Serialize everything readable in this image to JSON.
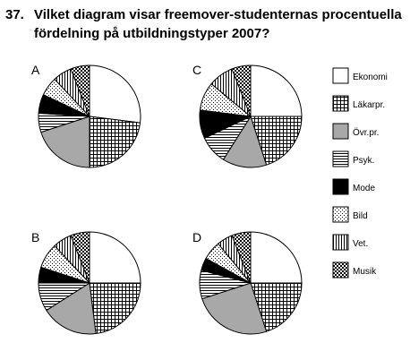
{
  "question": {
    "number": "37.",
    "text_line1": "Vilket diagram visar freemover-studenternas procentuella",
    "text_line2": "fördelning på utbildningstyper 2007?"
  },
  "legend": [
    {
      "label": "Ekonomi",
      "pattern": "white"
    },
    {
      "label": "Läkarpr.",
      "pattern": "crosshatch"
    },
    {
      "label": "Övr.pr.",
      "pattern": "gray"
    },
    {
      "label": "Psyk.",
      "pattern": "hlines"
    },
    {
      "label": "Mode",
      "pattern": "black"
    },
    {
      "label": "Bild",
      "pattern": "dots"
    },
    {
      "label": "Vet.",
      "pattern": "vlines"
    },
    {
      "label": "Musik",
      "pattern": "checker"
    }
  ],
  "chart_data": [
    {
      "type": "pie",
      "label": "A",
      "categories": [
        "Ekonomi",
        "Läkarpr.",
        "Övr.pr.",
        "Psyk.",
        "Mode",
        "Bild",
        "Vet.",
        "Musik"
      ],
      "values": [
        27,
        23,
        20,
        6,
        6,
        6,
        6,
        6
      ]
    },
    {
      "type": "pie",
      "label": "C",
      "categories": [
        "Ekonomi",
        "Läkarpr.",
        "Övr.pr.",
        "Psyk.",
        "Mode",
        "Bild",
        "Vet.",
        "Musik"
      ],
      "values": [
        25,
        20,
        14,
        9,
        9,
        9,
        8,
        6
      ]
    },
    {
      "type": "pie",
      "label": "B",
      "categories": [
        "Ekonomi",
        "Läkarpr.",
        "Övr.pr.",
        "Psyk.",
        "Mode",
        "Bild",
        "Vet.",
        "Musik"
      ],
      "values": [
        25,
        23,
        18,
        9,
        5,
        8,
        6,
        6
      ]
    },
    {
      "type": "pie",
      "label": "D",
      "categories": [
        "Ekonomi",
        "Läkarpr.",
        "Övr.pr.",
        "Psyk.",
        "Mode",
        "Bild",
        "Vet.",
        "Musik"
      ],
      "values": [
        25,
        20,
        25,
        9,
        4,
        6,
        5,
        6
      ]
    }
  ]
}
